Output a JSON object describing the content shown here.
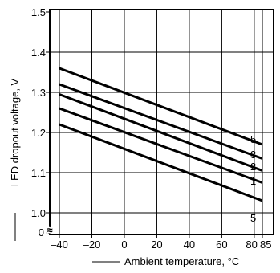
{
  "chart_data": {
    "type": "line",
    "title": "",
    "xlabel": "Ambient temperature, °C",
    "ylabel": "LED dropout voltage, V",
    "xlim": [
      -45,
      95
    ],
    "ylim": [
      1.0,
      1.5
    ],
    "x_ticks": [
      -40,
      -20,
      0,
      20,
      40,
      60,
      80,
      85
    ],
    "x_tick_labels": [
      "–40",
      "–20",
      "0",
      "20",
      "40",
      "60",
      "80",
      "85"
    ],
    "y_ticks": [
      1.0,
      1.1,
      1.2,
      1.3,
      1.4,
      1.5
    ],
    "y_tick_labels": [
      "1.0",
      "1.1",
      "1.2",
      "1.3",
      "1.4",
      "1.5"
    ],
    "y_zero_label": "0",
    "axis_break": "≈",
    "grid": true,
    "series": [
      {
        "name": "5",
        "x": [
          -40,
          85
        ],
        "y": [
          1.36,
          1.17
        ]
      },
      {
        "name": "3",
        "x": [
          -40,
          85
        ],
        "y": [
          1.32,
          1.135
        ]
      },
      {
        "name": "2",
        "x": [
          -40,
          85
        ],
        "y": [
          1.295,
          1.105
        ]
      },
      {
        "name": "1",
        "x": [
          -40,
          85
        ],
        "y": [
          1.26,
          1.075
        ]
      },
      {
        "name": "5",
        "x": [
          -40,
          85
        ],
        "y": [
          1.22,
          1.03
        ]
      }
    ]
  }
}
